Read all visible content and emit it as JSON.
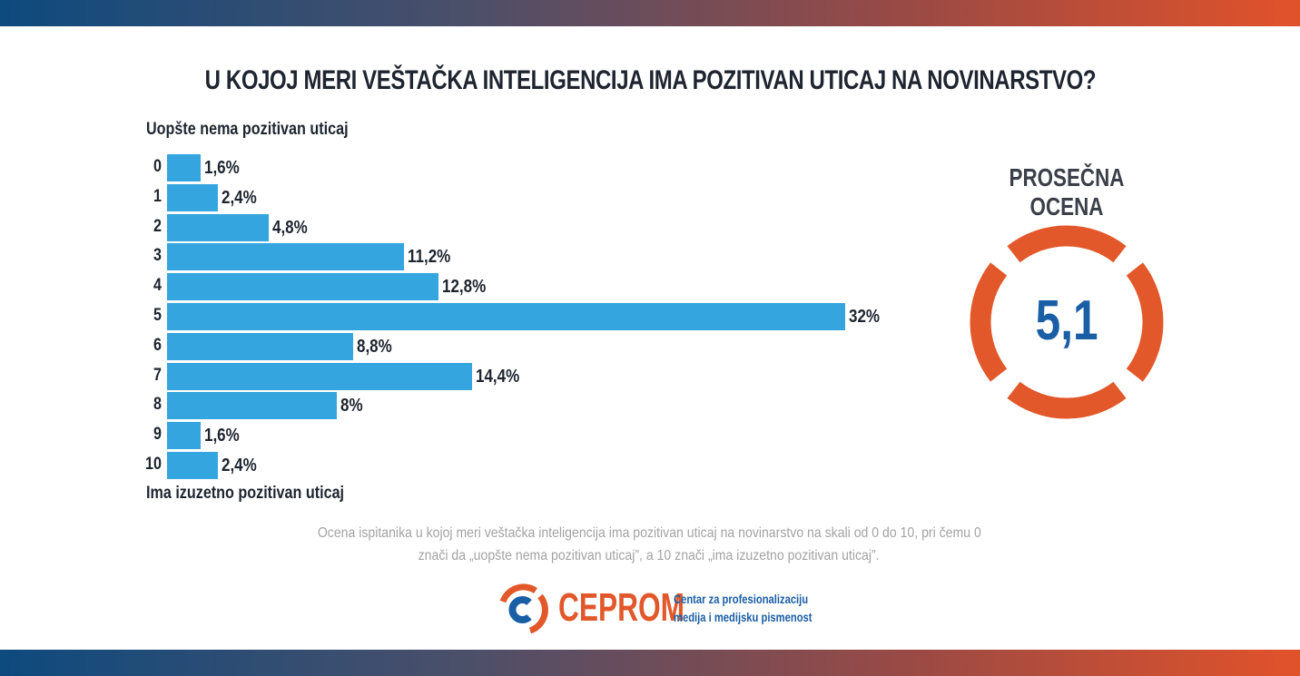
{
  "title": "U KOJOJ MERI VEŠTAČKA INTELIGENCIJA IMA POZITIVAN UTICAJ NA NOVINARSTVO?",
  "colors": {
    "bar": "#34a5de",
    "ring": "#e2582a",
    "average_text": "#1a5ea5",
    "brand": "#e2582a"
  },
  "chart_data": {
    "type": "bar",
    "orientation": "horizontal",
    "title": "U KOJOJ MERI VEŠTAČKA INTELIGENCIJA IMA POZITIVAN UTICAJ NA NOVINARSTVO?",
    "top_label": "Uopšte nema pozitivan uticaj",
    "bottom_label": "Ima izuzetno pozitivan uticaj",
    "categories": [
      "0",
      "1",
      "2",
      "3",
      "4",
      "5",
      "6",
      "7",
      "8",
      "9",
      "10"
    ],
    "values": [
      1.6,
      2.4,
      4.8,
      11.2,
      12.8,
      32,
      8.8,
      14.4,
      8,
      1.6,
      2.4
    ],
    "value_labels": [
      "1,6%",
      "2,4%",
      "4,8%",
      "11,2%",
      "12,8%",
      "32%",
      "8,8%",
      "14,4%",
      "8%",
      "1,6%",
      "2,4%"
    ],
    "unit": "%",
    "grid": false
  },
  "average": {
    "label": "PROSEČNA OCENA",
    "value": "5,1"
  },
  "note": {
    "line1": "Ocena ispitanika u kojoj meri veštačka inteligencija ima pozitivan uticaj na novinarstvo na skali od 0 do 10, pri čemu 0",
    "line2": "znači da „uopšte nema pozitivan uticaj”, a 10 znači „ima izuzetno pozitivan uticaj”."
  },
  "footer": {
    "brand": "CEPROM",
    "tagline1": "Centar za profesionalizaciju",
    "tagline2": "medija i medijsku pismenost"
  }
}
